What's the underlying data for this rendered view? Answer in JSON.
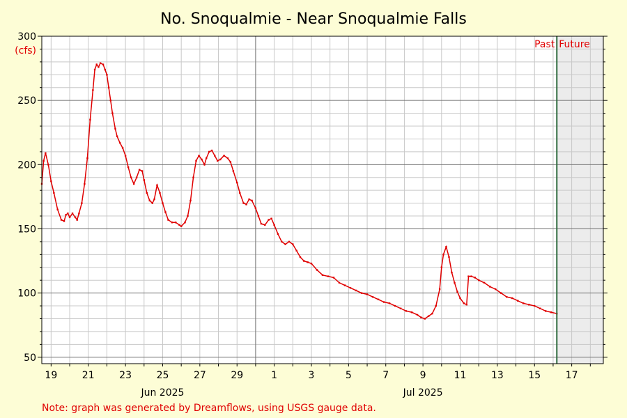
{
  "colors": {
    "background": "#fdfdd6",
    "plot_bg": "#ffffff",
    "future_bg": "#ececec",
    "series": "#e00000",
    "now_line": "#2e6b3e",
    "grid_minor": "#c8c8c8",
    "grid_major": "#707070"
  },
  "chart_data": {
    "type": "line",
    "title": "No. Snoqualmie - Near Snoqualmie Falls",
    "ylabel": "(cfs)",
    "ylim": [
      45,
      300
    ],
    "xlim": [
      18.5,
      48.7
    ],
    "x_unit": "days from May 31 2025 (18 = Jun 18, 31 = Jul 1)",
    "yticks": [
      50,
      100,
      150,
      200,
      250,
      300
    ],
    "xticks": [
      {
        "x": 19,
        "label": "19"
      },
      {
        "x": 21,
        "label": "21"
      },
      {
        "x": 23,
        "label": "23"
      },
      {
        "x": 25,
        "label": "25"
      },
      {
        "x": 27,
        "label": "27"
      },
      {
        "x": 29,
        "label": "29"
      },
      {
        "x": 31,
        "label": "1"
      },
      {
        "x": 33,
        "label": "3"
      },
      {
        "x": 35,
        "label": "5"
      },
      {
        "x": 37,
        "label": "7"
      },
      {
        "x": 39,
        "label": "9"
      },
      {
        "x": 41,
        "label": "11"
      },
      {
        "x": 43,
        "label": "13"
      },
      {
        "x": 45,
        "label": "15"
      },
      {
        "x": 47,
        "label": "17"
      }
    ],
    "month_labels": [
      {
        "x": 25,
        "label": "Jun 2025"
      },
      {
        "x": 39,
        "label": "Jul 2025"
      }
    ],
    "month_boundary_x": 30.0,
    "now_x": 46.2,
    "past_label": "Past",
    "future_label": "Future",
    "grid": true,
    "series": [
      {
        "color": "#e00000",
        "points": [
          [
            18.5,
            185
          ],
          [
            18.6,
            203
          ],
          [
            18.7,
            209
          ],
          [
            18.85,
            200
          ],
          [
            19.0,
            187
          ],
          [
            19.15,
            178
          ],
          [
            19.35,
            165
          ],
          [
            19.55,
            157
          ],
          [
            19.7,
            156
          ],
          [
            19.8,
            161
          ],
          [
            19.9,
            162
          ],
          [
            20.0,
            159
          ],
          [
            20.15,
            162
          ],
          [
            20.3,
            159
          ],
          [
            20.4,
            157
          ],
          [
            20.5,
            162
          ],
          [
            20.65,
            170
          ],
          [
            20.8,
            185
          ],
          [
            20.95,
            205
          ],
          [
            21.1,
            235
          ],
          [
            21.25,
            258
          ],
          [
            21.35,
            274
          ],
          [
            21.45,
            278
          ],
          [
            21.55,
            276
          ],
          [
            21.65,
            279
          ],
          [
            21.8,
            278
          ],
          [
            21.9,
            274
          ],
          [
            22.0,
            270
          ],
          [
            22.1,
            260
          ],
          [
            22.2,
            250
          ],
          [
            22.3,
            240
          ],
          [
            22.45,
            228
          ],
          [
            22.55,
            222
          ],
          [
            22.7,
            217
          ],
          [
            22.85,
            213
          ],
          [
            23.0,
            207
          ],
          [
            23.15,
            198
          ],
          [
            23.3,
            190
          ],
          [
            23.45,
            185
          ],
          [
            23.6,
            190
          ],
          [
            23.75,
            196
          ],
          [
            23.9,
            195
          ],
          [
            24.0,
            188
          ],
          [
            24.15,
            178
          ],
          [
            24.3,
            172
          ],
          [
            24.45,
            170
          ],
          [
            24.55,
            173
          ],
          [
            24.7,
            184
          ],
          [
            24.85,
            178
          ],
          [
            25.0,
            170
          ],
          [
            25.15,
            163
          ],
          [
            25.3,
            157
          ],
          [
            25.5,
            155
          ],
          [
            25.7,
            155
          ],
          [
            25.9,
            153
          ],
          [
            26.0,
            152
          ],
          [
            26.2,
            155
          ],
          [
            26.35,
            160
          ],
          [
            26.5,
            172
          ],
          [
            26.65,
            190
          ],
          [
            26.8,
            203
          ],
          [
            26.95,
            207
          ],
          [
            27.1,
            204
          ],
          [
            27.25,
            200
          ],
          [
            27.35,
            205
          ],
          [
            27.5,
            210
          ],
          [
            27.65,
            211
          ],
          [
            27.8,
            207
          ],
          [
            27.95,
            203
          ],
          [
            28.1,
            204
          ],
          [
            28.3,
            207
          ],
          [
            28.5,
            205
          ],
          [
            28.65,
            202
          ],
          [
            28.8,
            195
          ],
          [
            29.0,
            186
          ],
          [
            29.15,
            178
          ],
          [
            29.35,
            170
          ],
          [
            29.5,
            169
          ],
          [
            29.65,
            173
          ],
          [
            29.8,
            172
          ],
          [
            30.0,
            166
          ],
          [
            30.15,
            160
          ],
          [
            30.3,
            154
          ],
          [
            30.5,
            153
          ],
          [
            30.7,
            157
          ],
          [
            30.85,
            158
          ],
          [
            31.0,
            153
          ],
          [
            31.2,
            146
          ],
          [
            31.4,
            140
          ],
          [
            31.6,
            138
          ],
          [
            31.8,
            140
          ],
          [
            32.0,
            138
          ],
          [
            32.2,
            133
          ],
          [
            32.4,
            128
          ],
          [
            32.6,
            125
          ],
          [
            32.8,
            124
          ],
          [
            33.0,
            123
          ],
          [
            33.3,
            118
          ],
          [
            33.6,
            114
          ],
          [
            33.9,
            113
          ],
          [
            34.2,
            112
          ],
          [
            34.5,
            108
          ],
          [
            34.8,
            106
          ],
          [
            35.1,
            104
          ],
          [
            35.4,
            102
          ],
          [
            35.7,
            100
          ],
          [
            36.0,
            99
          ],
          [
            36.3,
            97
          ],
          [
            36.6,
            95
          ],
          [
            36.9,
            93
          ],
          [
            37.2,
            92
          ],
          [
            37.5,
            90
          ],
          [
            37.8,
            88
          ],
          [
            38.1,
            86
          ],
          [
            38.4,
            85
          ],
          [
            38.7,
            83
          ],
          [
            38.9,
            81
          ],
          [
            39.1,
            80
          ],
          [
            39.3,
            82
          ],
          [
            39.5,
            84
          ],
          [
            39.7,
            90
          ],
          [
            39.9,
            103
          ],
          [
            40.0,
            120
          ],
          [
            40.1,
            130
          ],
          [
            40.25,
            136
          ],
          [
            40.4,
            128
          ],
          [
            40.55,
            116
          ],
          [
            40.7,
            108
          ],
          [
            40.85,
            101
          ],
          [
            41.0,
            96
          ],
          [
            41.2,
            92
          ],
          [
            41.35,
            91
          ],
          [
            41.45,
            113
          ],
          [
            41.6,
            113
          ],
          [
            41.8,
            112
          ],
          [
            42.0,
            110
          ],
          [
            42.3,
            108
          ],
          [
            42.6,
            105
          ],
          [
            42.9,
            103
          ],
          [
            43.2,
            100
          ],
          [
            43.5,
            97
          ],
          [
            43.8,
            96
          ],
          [
            44.1,
            94
          ],
          [
            44.4,
            92
          ],
          [
            44.7,
            91
          ],
          [
            45.0,
            90
          ],
          [
            45.3,
            88
          ],
          [
            45.6,
            86
          ],
          [
            45.9,
            85
          ],
          [
            46.2,
            84
          ]
        ]
      }
    ]
  },
  "footer_note": "Note: graph was generated by Dreamflows, using USGS gauge data."
}
